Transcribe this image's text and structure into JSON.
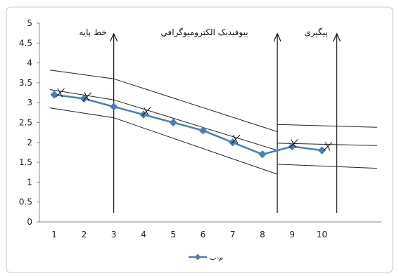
{
  "chart_data": {
    "type": "line",
    "x": [
      1,
      2,
      3,
      4,
      5,
      6,
      7,
      8,
      9,
      10
    ],
    "series": [
      {
        "name": "م-ب",
        "values": [
          3.2,
          3.1,
          2.9,
          2.7,
          2.5,
          2.3,
          2.0,
          1.7,
          1.9,
          1.8
        ],
        "color": "#4a7ebb"
      }
    ],
    "y_ticks": [
      "0",
      "0.5",
      "1",
      "1.5",
      "2",
      "2.5",
      "3",
      "3.5",
      "4",
      "4.5",
      "5"
    ],
    "x_ticks": [
      "1",
      "2",
      "3",
      "4",
      "5",
      "6",
      "7",
      "8",
      "9",
      "10"
    ],
    "ylim": [
      0,
      5
    ],
    "phases": [
      {
        "label": "خط پایه"
      },
      {
        "label": "بیوفیدبک الکترومیوگرافي"
      },
      {
        "label": "پیگیری"
      }
    ],
    "phase_lines_x": [
      3,
      8.5,
      10.5
    ],
    "cross_marks": [
      {
        "x": 1.2,
        "y": 3.25
      },
      {
        "x": 2.1,
        "y": 3.15
      },
      {
        "x": 4.1,
        "y": 2.78
      },
      {
        "x": 7.1,
        "y": 2.08
      },
      {
        "x": 9.05,
        "y": 1.97
      },
      {
        "x": 10.2,
        "y": 1.9
      }
    ],
    "band_lines": [
      {
        "points": [
          [
            0.85,
            3.82
          ],
          [
            3,
            3.6
          ],
          [
            8.5,
            2.27
          ]
        ]
      },
      {
        "points": [
          [
            0.85,
            3.33
          ],
          [
            3,
            3.07
          ],
          [
            8.5,
            1.8
          ]
        ]
      },
      {
        "points": [
          [
            0.85,
            2.87
          ],
          [
            3,
            2.62
          ],
          [
            8.5,
            1.2
          ]
        ]
      },
      {
        "points": [
          [
            8.5,
            2.45
          ],
          [
            11.85,
            2.38
          ]
        ]
      },
      {
        "points": [
          [
            8.5,
            1.98
          ],
          [
            11.85,
            1.92
          ]
        ]
      },
      {
        "points": [
          [
            8.5,
            1.45
          ],
          [
            11.85,
            1.35
          ]
        ]
      }
    ],
    "legend_position": "bottom",
    "grid": false
  }
}
